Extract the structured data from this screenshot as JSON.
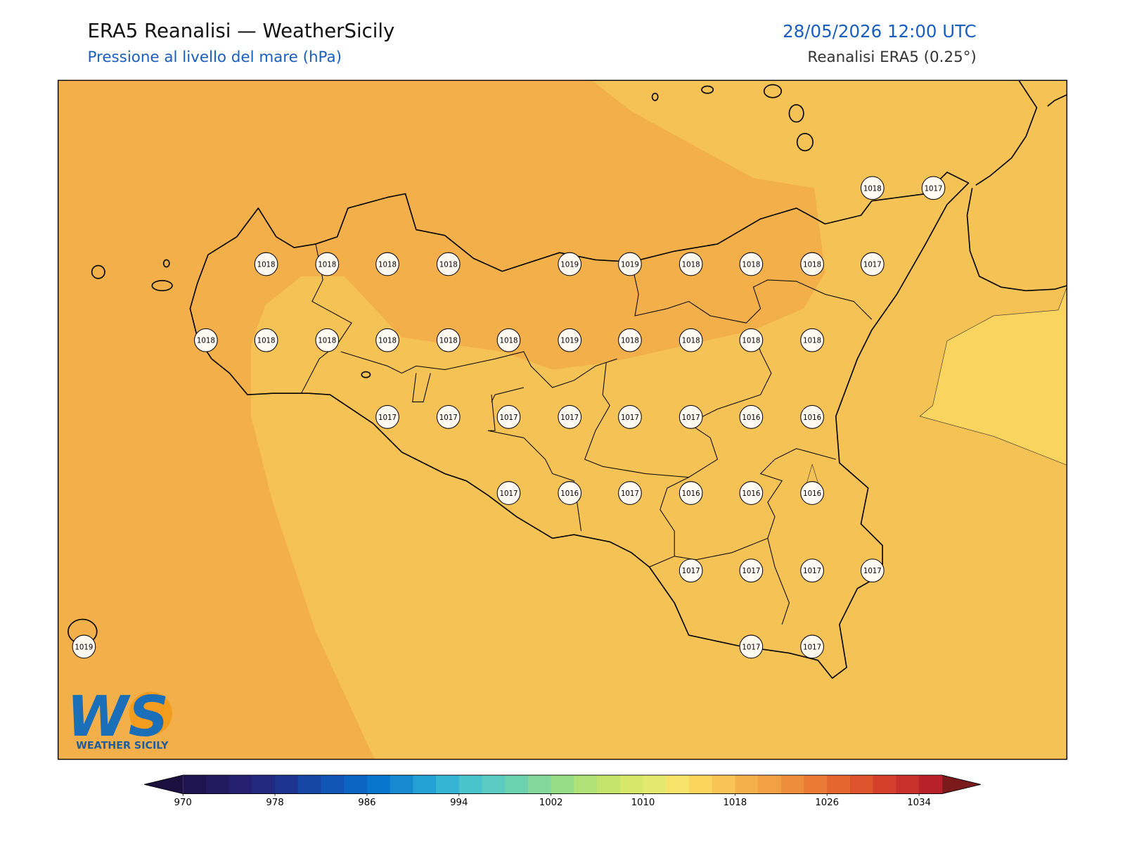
{
  "header": {
    "title": "ERA5 Reanalisi — WeatherSicily",
    "subtitle": "Pressione al livello del mare (hPa)",
    "datetime": "28/05/2026 12:00 UTC",
    "source": "Reanalisi ERA5 (0.25°)"
  },
  "stations": {
    "values": [
      1018,
      1017,
      1018,
      1018,
      1018,
      1018,
      1019,
      1019,
      1018,
      1018,
      1018,
      1017,
      1018,
      1018,
      1018,
      1018,
      1018,
      1018,
      1019,
      1018,
      1018,
      1018,
      1018,
      1017,
      1017,
      1017,
      1017,
      1017,
      1017,
      1016,
      1016,
      1017,
      1016,
      1017,
      1016,
      1016,
      1016,
      1017,
      1017,
      1017,
      1017,
      1019,
      1017,
      1017
    ]
  },
  "colorbar": {
    "lim": [
      970,
      1036
    ],
    "ticks": [
      970,
      978,
      986,
      994,
      1002,
      1010,
      1018,
      1026,
      1034
    ],
    "colors": [
      "#1e1450",
      "#221a5c",
      "#241f6e",
      "#22297f",
      "#1d3590",
      "#1546a4",
      "#1054b4",
      "#0b63c2",
      "#0a75cc",
      "#168ad1",
      "#25a0d4",
      "#36b4d4",
      "#4ac3cc",
      "#5acbc0",
      "#6cd2b0",
      "#82d79a",
      "#97dc86",
      "#aee176",
      "#c3e46a",
      "#d6e769",
      "#e5e86e",
      "#f6e46a",
      "#fbd45e",
      "#f7c455",
      "#f4b04a",
      "#f1a143",
      "#ee8d3c",
      "#ea7a35",
      "#e5662f",
      "#dd532c",
      "#d4402c",
      "#c8302c",
      "#b7222a"
    ]
  },
  "logo": {
    "mark": "WS",
    "text": "WEATHER SICILY"
  }
}
